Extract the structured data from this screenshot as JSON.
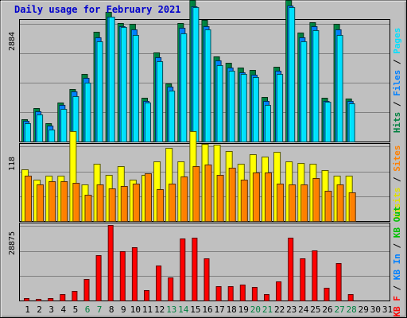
{
  "chart_data": {
    "type": "bar",
    "title": "Daily usage for February 2021",
    "days": [
      "1",
      "2",
      "3",
      "4",
      "5",
      "6",
      "7",
      "8",
      "9",
      "10",
      "11",
      "12",
      "13",
      "14",
      "15",
      "16",
      "17",
      "18",
      "19",
      "20",
      "21",
      "22",
      "23",
      "24",
      "25",
      "26",
      "27",
      "28",
      "29",
      "30",
      "31"
    ],
    "weekend_days": [
      "6",
      "7",
      "13",
      "14",
      "20",
      "21",
      "27",
      "28"
    ],
    "panels": [
      {
        "id": "top",
        "ymax_label": "2884",
        "ymax": 2884,
        "right_labels": [
          {
            "text": "Hits",
            "color": "#008040"
          },
          {
            "text": " / ",
            "color": "#000000"
          },
          {
            "text": "Files",
            "color": "#0080ff"
          },
          {
            "text": " / ",
            "color": "#000000"
          },
          {
            "text": "Pages",
            "color": "#00e0ff"
          }
        ],
        "series": [
          {
            "name": "Hits",
            "color": "#008040",
            "values": [
              540,
              810,
              440,
              950,
              1290,
              1660,
              2680,
              3170,
              2900,
              2880,
              1070,
              2180,
              1420,
              2900,
              3460,
              2990,
              2090,
              1920,
              1810,
              1750,
              1090,
              1840,
              3470,
              2660,
              2930,
              1080,
              2880,
              1060
            ]
          },
          {
            "name": "Files",
            "color": "#0080ff",
            "values": [
              500,
              740,
              380,
              890,
              1220,
              1560,
              2560,
              3060,
              2820,
              2750,
              990,
              2060,
              1340,
              2790,
              3320,
              2830,
              1990,
              1820,
              1690,
              1640,
              1000,
              1740,
              3340,
              2550,
              2820,
              1000,
              2740,
              990
            ]
          },
          {
            "name": "Pages",
            "color": "#00e0ff",
            "values": [
              450,
              660,
              300,
              800,
              1120,
              1450,
              2450,
              3060,
              2800,
              2620,
              950,
              1970,
              1240,
              2650,
              3300,
              2750,
              1880,
              1730,
              1650,
              1580,
              900,
              1650,
              3300,
              2460,
              2730,
              970,
              2620,
              930
            ]
          }
        ]
      },
      {
        "id": "middle",
        "ymax_label": "118",
        "ymax": 118,
        "right_labels": [
          {
            "text": "Visits",
            "color": "#e0e000"
          },
          {
            "text": " / ",
            "color": "#000000"
          },
          {
            "text": "Sites",
            "color": "#ff8000"
          }
        ],
        "series": [
          {
            "name": "Visits",
            "color": "#ffff00",
            "values": [
              82,
              65,
              72,
              71,
              142,
              58,
              91,
              73,
              87,
              65,
              73,
              94,
              115,
              94,
              142,
              122,
              121,
              110,
              90,
              106,
              102,
              109,
              94,
              92,
              91,
              80,
              72,
              71
            ]
          },
          {
            "name": "Sites",
            "color": "#ff8000",
            "values": [
              72,
              58,
              63,
              63,
              60,
              42,
              58,
              51,
              55,
              59,
              75,
              50,
              59,
              70,
              87,
              89,
              73,
              84,
              65,
              77,
              76,
              59,
              58,
              58,
              68,
              48,
              58,
              45
            ]
          }
        ]
      },
      {
        "id": "bottom",
        "ymax_label": "28875",
        "ymax": 28875,
        "right_labels": [
          {
            "text": "KB F",
            "color": "#ff0000"
          },
          {
            "text": " / ",
            "color": "#000000"
          },
          {
            "text": "KB In",
            "color": "#0080ff"
          },
          {
            "text": " / ",
            "color": "#000000"
          },
          {
            "text": "KB Out",
            "color": "#00c000"
          }
        ],
        "series": [
          {
            "name": "KB F",
            "color": "#ff0000",
            "values": [
              1000,
              700,
              1000,
              2600,
              3600,
              8200,
              17600,
              29100,
              19000,
              20600,
              4000,
              13600,
              8800,
              24100,
              24400,
              16300,
              5600,
              5600,
              6200,
              5100,
              2600,
              7400,
              24400,
              16400,
              19300,
              5000,
              14300,
              2600
            ]
          }
        ]
      }
    ]
  }
}
